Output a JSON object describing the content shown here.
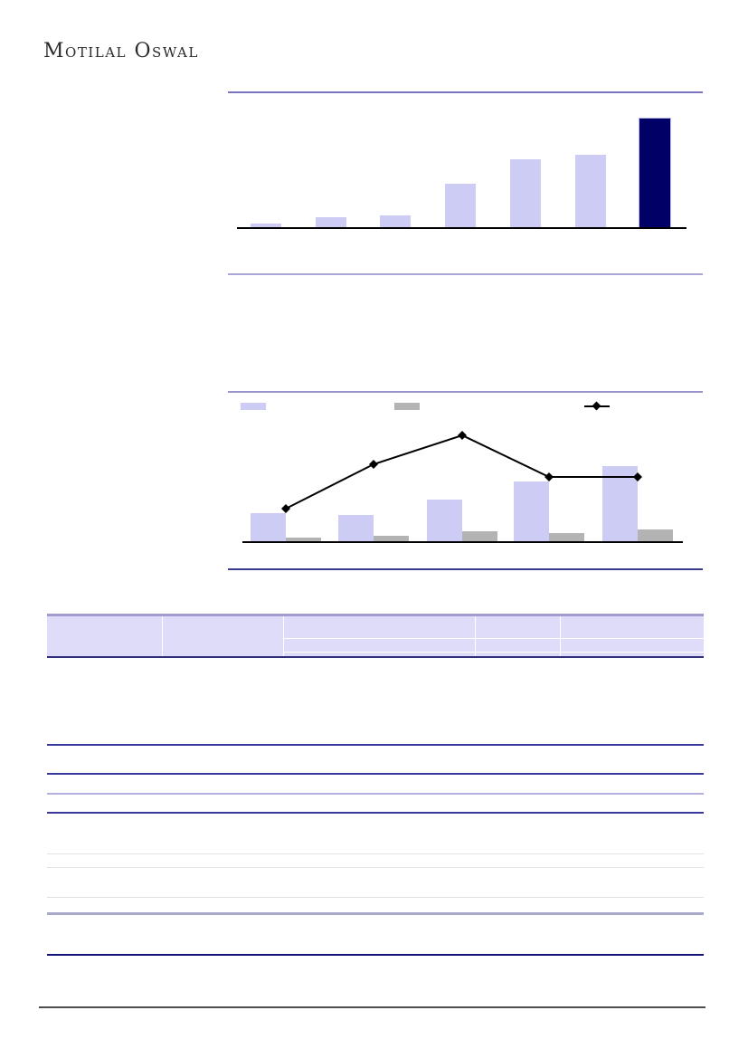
{
  "brand": {
    "logo_text": "Motilal Oswal"
  },
  "palette": {
    "bar_lavender": "#ccccf5",
    "bar_navy": "#000066",
    "bar_navy_edge": "#b9b9ee",
    "bar_gray": "#b3b3b3",
    "line_black": "#000000",
    "rule_purple": "#7a74bf",
    "rule_light_purple": "#aaa6d8",
    "rule_navy": "#39399b",
    "rule_pale_navy": "#b2b0de",
    "rule_gray": "#e3e3e3",
    "rule_lavender_thick": "#a9aac9",
    "rule_dark_navy": "#121277",
    "header_fill": "#dedcf8",
    "header_top_border": "#a29bce",
    "header_bottom_border": "#2e2e7a",
    "footer_rule": "#4d4d4d"
  },
  "chart_data": [
    {
      "type": "bar",
      "title": "",
      "xlabel": "",
      "ylabel": "",
      "categories": [
        "",
        "",
        "",
        "",
        "",
        "",
        ""
      ],
      "values": [
        4,
        11,
        13,
        48,
        75,
        80,
        120
      ],
      "value_units": "pixel-height (no numeric axis rendered in source)",
      "bar_colors": [
        "lavender",
        "lavender",
        "lavender",
        "lavender",
        "lavender",
        "lavender",
        "navy"
      ],
      "legend_position": "none",
      "grid": false
    },
    {
      "type": "combo",
      "title": "",
      "xlabel": "",
      "ylabel": "",
      "categories": [
        "",
        "",
        "",
        "",
        ""
      ],
      "series": [
        {
          "name": "",
          "kind": "bar",
          "color": "lavender",
          "values": [
            31,
            29,
            46,
            66,
            83
          ]
        },
        {
          "name": "",
          "kind": "bar",
          "color": "gray",
          "values": [
            4,
            6,
            11,
            9,
            13
          ]
        },
        {
          "name": "",
          "kind": "line",
          "color": "black",
          "marker": "diamond",
          "values": [
            36,
            85,
            117,
            71,
            71
          ]
        }
      ],
      "value_units": "pixel-height (no numeric axis rendered in source)",
      "legend_position": "top",
      "legend_swatches": [
        "lavender-bar",
        "gray-bar",
        "black-line-with-diamond"
      ],
      "grid": false
    }
  ]
}
